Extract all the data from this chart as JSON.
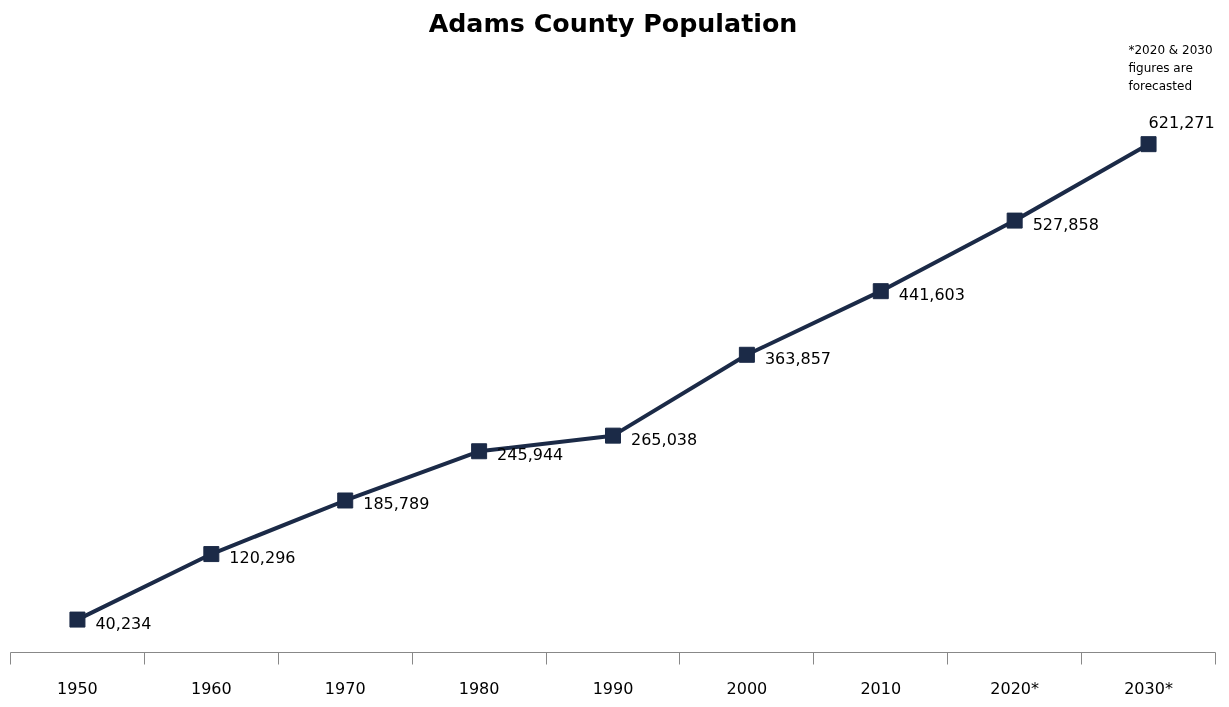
{
  "chart_data": {
    "type": "line",
    "title": "Adams County Population",
    "categories": [
      "1950",
      "1960",
      "1970",
      "1980",
      "1990",
      "2000",
      "2010",
      "2020*",
      "2030*"
    ],
    "series": [
      {
        "color": "#1b2a47",
        "values": [
          40234,
          120296,
          185789,
          245944,
          265038,
          363857,
          441603,
          527858,
          621271
        ],
        "value_labels": [
          "40,234",
          "120,296",
          "185,789",
          "245,944",
          "265,038",
          "363,857",
          "441,603",
          "527,858",
          "621,271"
        ]
      }
    ],
    "marker": "square",
    "line_style": "solid",
    "grid": false,
    "tick_labels": "x",
    "annotations": [
      "*2020 & 2030 figures are forecasted"
    ]
  }
}
